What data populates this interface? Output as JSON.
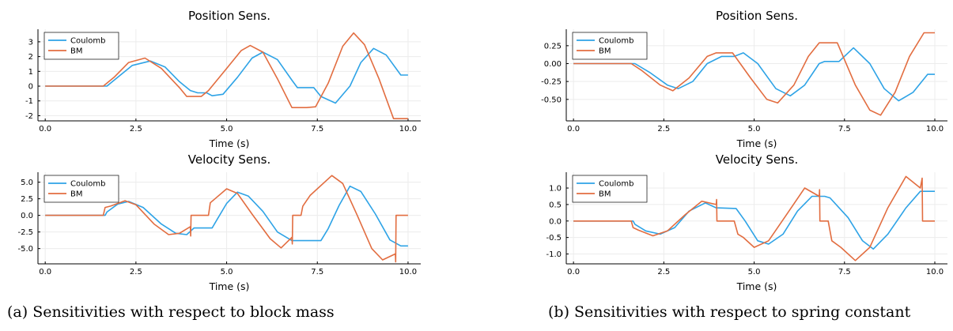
{
  "colors": {
    "coulomb": "#2ea3e6",
    "bm": "#e26d40",
    "axis": "#000000",
    "grid": "#ececec"
  },
  "captions": {
    "a": "(a) Sensitivities with respect to block mass",
    "b": "(b) Sensitivities with respect to spring constant"
  },
  "chart_data": [
    {
      "id": "a-pos",
      "type": "line",
      "title": "Position Sens.",
      "xlabel": "Time (s)",
      "ylabel": "",
      "xlim": [
        -0.2,
        10.35
      ],
      "ylim": [
        -2.35,
        3.85
      ],
      "xticks": [
        0.0,
        2.5,
        5.0,
        7.5,
        10.0
      ],
      "xtick_labels": [
        "0.0",
        "2.5",
        "5.0",
        "7.5",
        "10.0"
      ],
      "yticks": [
        -2,
        -1,
        0,
        1,
        2,
        3
      ],
      "ytick_labels": [
        "-2",
        "-1",
        "0",
        "1",
        "2",
        "3"
      ],
      "grid": true,
      "legend": "top-left",
      "series": [
        {
          "name": "Coulomb",
          "points": [
            [
              0,
              0
            ],
            [
              1.7,
              0
            ],
            [
              2.0,
              0.6
            ],
            [
              2.4,
              1.4
            ],
            [
              2.9,
              1.7
            ],
            [
              3.3,
              1.3
            ],
            [
              3.7,
              0.3
            ],
            [
              4.0,
              -0.3
            ],
            [
              4.2,
              -0.45
            ],
            [
              4.45,
              -0.45
            ],
            [
              4.6,
              -0.65
            ],
            [
              4.9,
              -0.55
            ],
            [
              5.3,
              0.6
            ],
            [
              5.7,
              1.9
            ],
            [
              6.0,
              2.3
            ],
            [
              6.4,
              1.8
            ],
            [
              6.8,
              0.4
            ],
            [
              6.95,
              -0.1
            ],
            [
              7.4,
              -0.1
            ],
            [
              7.6,
              -0.7
            ],
            [
              8.0,
              -1.15
            ],
            [
              8.4,
              0.0
            ],
            [
              8.7,
              1.6
            ],
            [
              9.05,
              2.55
            ],
            [
              9.4,
              2.1
            ],
            [
              9.8,
              0.75
            ],
            [
              10.0,
              0.75
            ]
          ]
        },
        {
          "name": "BM",
          "points": [
            [
              0,
              0
            ],
            [
              1.6,
              0
            ],
            [
              1.9,
              0.6
            ],
            [
              2.3,
              1.6
            ],
            [
              2.75,
              1.9
            ],
            [
              3.2,
              1.2
            ],
            [
              3.7,
              -0.1
            ],
            [
              3.9,
              -0.7
            ],
            [
              4.3,
              -0.7
            ],
            [
              4.5,
              -0.3
            ],
            [
              5.0,
              1.2
            ],
            [
              5.4,
              2.4
            ],
            [
              5.65,
              2.75
            ],
            [
              6.0,
              2.3
            ],
            [
              6.4,
              0.5
            ],
            [
              6.8,
              -1.45
            ],
            [
              7.2,
              -1.45
            ],
            [
              7.45,
              -1.4
            ],
            [
              7.8,
              0.2
            ],
            [
              8.2,
              2.7
            ],
            [
              8.5,
              3.6
            ],
            [
              8.8,
              2.8
            ],
            [
              9.2,
              0.5
            ],
            [
              9.6,
              -2.2
            ],
            [
              10.0,
              -2.2
            ]
          ]
        }
      ]
    },
    {
      "id": "a-vel",
      "type": "line",
      "title": "Velocity Sens.",
      "xlabel": "Time (s)",
      "ylabel": "",
      "xlim": [
        -0.2,
        10.35
      ],
      "ylim": [
        -7.3,
        6.5
      ],
      "xticks": [
        0.0,
        2.5,
        5.0,
        7.5,
        10.0
      ],
      "xtick_labels": [
        "0.0",
        "2.5",
        "5.0",
        "7.5",
        "10.0"
      ],
      "yticks": [
        -5,
        -2.5,
        0,
        2.5,
        5
      ],
      "ytick_labels": [
        "-5.0",
        "-2.5",
        "0.0",
        "2.5",
        "5.0"
      ],
      "grid": true,
      "legend": "top-left",
      "series": [
        {
          "name": "Coulomb",
          "points": [
            [
              0,
              0
            ],
            [
              1.65,
              0
            ],
            [
              1.7,
              0.5
            ],
            [
              2.0,
              1.7
            ],
            [
              2.3,
              2.1
            ],
            [
              2.7,
              1.2
            ],
            [
              3.2,
              -1.3
            ],
            [
              3.6,
              -2.7
            ],
            [
              3.9,
              -2.9
            ],
            [
              4.1,
              -1.9
            ],
            [
              4.6,
              -1.9
            ],
            [
              4.75,
              -0.5
            ],
            [
              5.0,
              1.8
            ],
            [
              5.3,
              3.5
            ],
            [
              5.6,
              2.9
            ],
            [
              6.0,
              0.6
            ],
            [
              6.4,
              -2.5
            ],
            [
              6.8,
              -3.8
            ],
            [
              7.6,
              -3.8
            ],
            [
              7.8,
              -2.0
            ],
            [
              8.1,
              1.5
            ],
            [
              8.4,
              4.4
            ],
            [
              8.7,
              3.6
            ],
            [
              9.1,
              0.2
            ],
            [
              9.5,
              -3.7
            ],
            [
              9.8,
              -4.6
            ],
            [
              10.0,
              -4.6
            ]
          ]
        },
        {
          "name": "BM",
          "points": [
            [
              0,
              0
            ],
            [
              1.6,
              0
            ],
            [
              1.65,
              1.2
            ],
            [
              1.8,
              1.4
            ],
            [
              2.2,
              2.2
            ],
            [
              2.5,
              1.6
            ],
            [
              3.0,
              -1.3
            ],
            [
              3.4,
              -2.9
            ],
            [
              3.7,
              -2.7
            ],
            [
              4.0,
              -1.7
            ],
            [
              4.01,
              -3.1
            ],
            [
              4.02,
              0.0
            ],
            [
              4.5,
              0.0
            ],
            [
              4.55,
              1.9
            ],
            [
              4.7,
              2.6
            ],
            [
              5.0,
              4.0
            ],
            [
              5.3,
              3.3
            ],
            [
              5.7,
              0.2
            ],
            [
              6.2,
              -3.5
            ],
            [
              6.5,
              -4.9
            ],
            [
              6.8,
              -3.3
            ],
            [
              6.81,
              -4.3
            ],
            [
              6.82,
              0.0
            ],
            [
              7.05,
              0.0
            ],
            [
              7.1,
              1.4
            ],
            [
              7.3,
              3.0
            ],
            [
              7.9,
              6.0
            ],
            [
              8.2,
              4.8
            ],
            [
              8.6,
              0.0
            ],
            [
              9.0,
              -5.0
            ],
            [
              9.3,
              -6.7
            ],
            [
              9.65,
              -5.8
            ],
            [
              9.66,
              -7.0
            ],
            [
              9.67,
              0.0
            ],
            [
              10.0,
              0.0
            ]
          ]
        }
      ]
    },
    {
      "id": "b-pos",
      "type": "line",
      "title": "Position Sens.",
      "xlabel": "Time (s)",
      "ylabel": "",
      "xlim": [
        -0.2,
        10.35
      ],
      "ylim": [
        -0.8,
        0.48
      ],
      "xticks": [
        0.0,
        2.5,
        5.0,
        7.5,
        10.0
      ],
      "xtick_labels": [
        "0.0",
        "2.5",
        "5.0",
        "7.5",
        "10.0"
      ],
      "yticks": [
        -0.5,
        -0.25,
        0.0,
        0.25
      ],
      "ytick_labels": [
        "-0.50",
        "-0.25",
        "0.00",
        "0.25"
      ],
      "grid": true,
      "legend": "top-left",
      "series": [
        {
          "name": "Coulomb",
          "points": [
            [
              0,
              0
            ],
            [
              1.7,
              0
            ],
            [
              2.1,
              -0.12
            ],
            [
              2.6,
              -0.3
            ],
            [
              2.9,
              -0.35
            ],
            [
              3.3,
              -0.25
            ],
            [
              3.7,
              0.0
            ],
            [
              4.1,
              0.1
            ],
            [
              4.45,
              0.1
            ],
            [
              4.7,
              0.15
            ],
            [
              5.1,
              0.0
            ],
            [
              5.6,
              -0.35
            ],
            [
              6.0,
              -0.45
            ],
            [
              6.4,
              -0.3
            ],
            [
              6.8,
              0.0
            ],
            [
              6.95,
              0.03
            ],
            [
              7.35,
              0.03
            ],
            [
              7.75,
              0.22
            ],
            [
              8.2,
              0.0
            ],
            [
              8.6,
              -0.35
            ],
            [
              9.0,
              -0.52
            ],
            [
              9.4,
              -0.4
            ],
            [
              9.8,
              -0.15
            ],
            [
              10.0,
              -0.15
            ]
          ]
        },
        {
          "name": "BM",
          "points": [
            [
              0,
              0
            ],
            [
              1.6,
              0
            ],
            [
              1.9,
              -0.1
            ],
            [
              2.4,
              -0.3
            ],
            [
              2.75,
              -0.38
            ],
            [
              3.2,
              -0.2
            ],
            [
              3.7,
              0.1
            ],
            [
              3.95,
              0.15
            ],
            [
              4.4,
              0.15
            ],
            [
              4.9,
              -0.2
            ],
            [
              5.35,
              -0.5
            ],
            [
              5.65,
              -0.55
            ],
            [
              6.1,
              -0.3
            ],
            [
              6.5,
              0.1
            ],
            [
              6.8,
              0.29
            ],
            [
              7.3,
              0.29
            ],
            [
              7.8,
              -0.3
            ],
            [
              8.2,
              -0.65
            ],
            [
              8.5,
              -0.72
            ],
            [
              8.9,
              -0.4
            ],
            [
              9.3,
              0.1
            ],
            [
              9.7,
              0.43
            ],
            [
              10.0,
              0.43
            ]
          ]
        }
      ]
    },
    {
      "id": "b-vel",
      "type": "line",
      "title": "Velocity Sens.",
      "xlabel": "Time (s)",
      "ylabel": "",
      "xlim": [
        -0.2,
        10.35
      ],
      "ylim": [
        -1.3,
        1.48
      ],
      "xticks": [
        0.0,
        2.5,
        5.0,
        7.5,
        10.0
      ],
      "xtick_labels": [
        "0.0",
        "2.5",
        "5.0",
        "7.5",
        "10.0"
      ],
      "yticks": [
        -1.0,
        -0.5,
        0.0,
        0.5,
        1.0
      ],
      "ytick_labels": [
        "-1.0",
        "-0.5",
        "0.0",
        "0.5",
        "1.0"
      ],
      "grid": true,
      "legend": "top-left",
      "series": [
        {
          "name": "Coulomb",
          "points": [
            [
              0,
              0
            ],
            [
              1.65,
              0
            ],
            [
              1.7,
              -0.1
            ],
            [
              2.0,
              -0.3
            ],
            [
              2.4,
              -0.4
            ],
            [
              2.8,
              -0.2
            ],
            [
              3.2,
              0.3
            ],
            [
              3.65,
              0.55
            ],
            [
              3.95,
              0.4
            ],
            [
              4.5,
              0.38
            ],
            [
              4.75,
              0.0
            ],
            [
              5.1,
              -0.6
            ],
            [
              5.4,
              -0.7
            ],
            [
              5.8,
              -0.4
            ],
            [
              6.2,
              0.3
            ],
            [
              6.6,
              0.75
            ],
            [
              6.95,
              0.75
            ],
            [
              7.1,
              0.7
            ],
            [
              7.6,
              0.1
            ],
            [
              8.0,
              -0.6
            ],
            [
              8.3,
              -0.85
            ],
            [
              8.7,
              -0.4
            ],
            [
              9.2,
              0.4
            ],
            [
              9.6,
              0.9
            ],
            [
              10.0,
              0.9
            ]
          ]
        },
        {
          "name": "BM",
          "points": [
            [
              0,
              0
            ],
            [
              1.6,
              0
            ],
            [
              1.65,
              -0.2
            ],
            [
              1.8,
              -0.28
            ],
            [
              2.2,
              -0.45
            ],
            [
              2.6,
              -0.3
            ],
            [
              3.1,
              0.2
            ],
            [
              3.55,
              0.6
            ],
            [
              3.95,
              0.5
            ],
            [
              3.96,
              0.65
            ],
            [
              3.97,
              0.0
            ],
            [
              4.45,
              0.0
            ],
            [
              4.55,
              -0.4
            ],
            [
              4.7,
              -0.5
            ],
            [
              5.0,
              -0.8
            ],
            [
              5.4,
              -0.6
            ],
            [
              5.9,
              0.2
            ],
            [
              6.4,
              1.0
            ],
            [
              6.8,
              0.75
            ],
            [
              6.81,
              0.95
            ],
            [
              6.82,
              0.0
            ],
            [
              7.05,
              0.0
            ],
            [
              7.15,
              -0.6
            ],
            [
              7.4,
              -0.8
            ],
            [
              7.8,
              -1.2
            ],
            [
              8.2,
              -0.8
            ],
            [
              8.7,
              0.4
            ],
            [
              9.2,
              1.35
            ],
            [
              9.6,
              1.0
            ],
            [
              9.65,
              1.3
            ],
            [
              9.66,
              0.0
            ],
            [
              10.0,
              0.0
            ]
          ]
        }
      ]
    }
  ]
}
